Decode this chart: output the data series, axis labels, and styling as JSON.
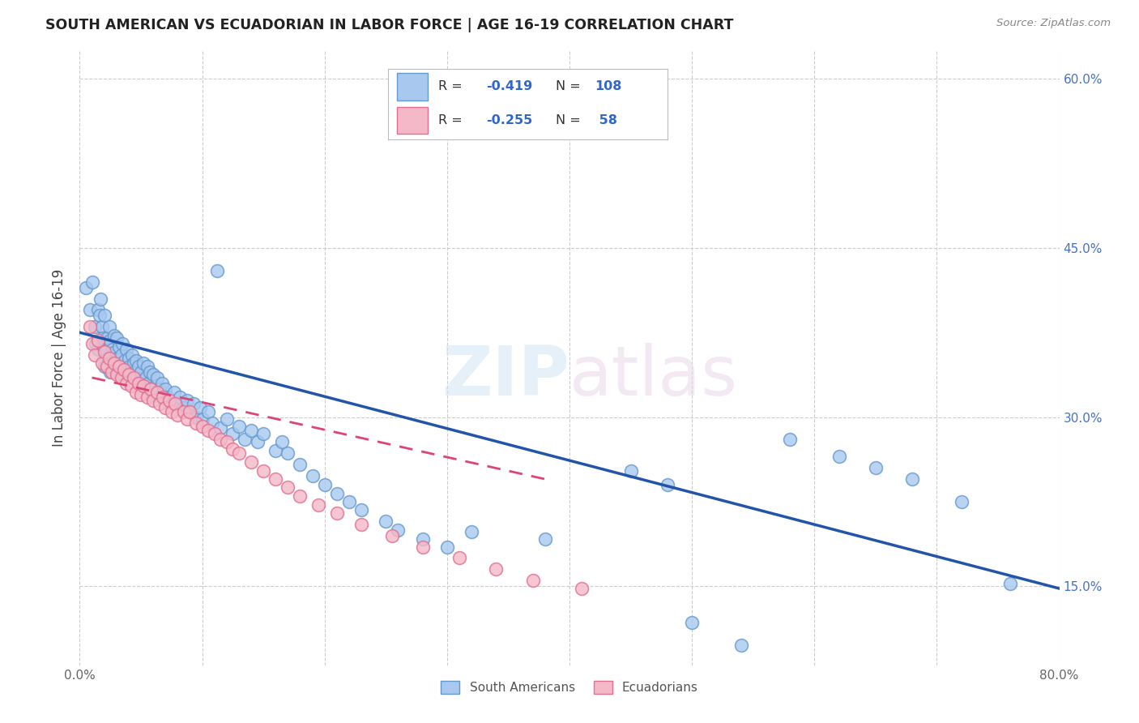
{
  "title": "SOUTH AMERICAN VS ECUADORIAN IN LABOR FORCE | AGE 16-19 CORRELATION CHART",
  "source": "Source: ZipAtlas.com",
  "ylabel": "In Labor Force | Age 16-19",
  "xlim": [
    0.0,
    0.8
  ],
  "ylim": [
    0.08,
    0.625
  ],
  "xticks": [
    0.0,
    0.1,
    0.2,
    0.3,
    0.4,
    0.5,
    0.6,
    0.7,
    0.8
  ],
  "xticklabels": [
    "0.0%",
    "",
    "",
    "",
    "",
    "",
    "",
    "",
    "80.0%"
  ],
  "yticks_right": [
    0.15,
    0.3,
    0.45,
    0.6
  ],
  "ytick_labels_right": [
    "15.0%",
    "30.0%",
    "45.0%",
    "60.0%"
  ],
  "blue_color": "#A8C8F0",
  "pink_color": "#F5B8C8",
  "blue_edge_color": "#6699CC",
  "pink_edge_color": "#E07090",
  "blue_line_color": "#2255AA",
  "pink_line_color": "#DD4477",
  "watermark": "ZIPatlas",
  "blue_R": -0.419,
  "blue_N": 108,
  "pink_R": -0.255,
  "pink_N": 58,
  "blue_line_x0": 0.0,
  "blue_line_y0": 0.375,
  "blue_line_x1": 0.8,
  "blue_line_y1": 0.148,
  "pink_line_x0": 0.01,
  "pink_line_y0": 0.335,
  "pink_line_x1": 0.38,
  "pink_line_y1": 0.245,
  "south_americans_x": [
    0.005,
    0.008,
    0.01,
    0.012,
    0.013,
    0.015,
    0.015,
    0.016,
    0.017,
    0.018,
    0.018,
    0.019,
    0.02,
    0.02,
    0.021,
    0.022,
    0.023,
    0.024,
    0.025,
    0.025,
    0.026,
    0.027,
    0.028,
    0.028,
    0.029,
    0.03,
    0.03,
    0.031,
    0.032,
    0.033,
    0.034,
    0.035,
    0.036,
    0.037,
    0.038,
    0.039,
    0.04,
    0.041,
    0.042,
    0.043,
    0.044,
    0.045,
    0.046,
    0.047,
    0.048,
    0.05,
    0.051,
    0.052,
    0.054,
    0.055,
    0.056,
    0.057,
    0.058,
    0.06,
    0.062,
    0.063,
    0.065,
    0.067,
    0.068,
    0.07,
    0.072,
    0.075,
    0.077,
    0.08,
    0.082,
    0.085,
    0.088,
    0.09,
    0.093,
    0.095,
    0.098,
    0.1,
    0.105,
    0.108,
    0.112,
    0.115,
    0.12,
    0.125,
    0.13,
    0.135,
    0.14,
    0.145,
    0.15,
    0.16,
    0.165,
    0.17,
    0.18,
    0.19,
    0.2,
    0.21,
    0.22,
    0.23,
    0.25,
    0.26,
    0.28,
    0.3,
    0.32,
    0.38,
    0.45,
    0.48,
    0.5,
    0.54,
    0.58,
    0.62,
    0.65,
    0.68,
    0.72,
    0.76
  ],
  "south_americans_y": [
    0.415,
    0.395,
    0.42,
    0.38,
    0.365,
    0.36,
    0.395,
    0.39,
    0.405,
    0.365,
    0.38,
    0.37,
    0.39,
    0.345,
    0.358,
    0.37,
    0.352,
    0.38,
    0.368,
    0.34,
    0.355,
    0.36,
    0.372,
    0.345,
    0.358,
    0.37,
    0.34,
    0.352,
    0.362,
    0.348,
    0.355,
    0.365,
    0.342,
    0.35,
    0.36,
    0.34,
    0.352,
    0.345,
    0.338,
    0.355,
    0.348,
    0.34,
    0.35,
    0.335,
    0.345,
    0.34,
    0.332,
    0.348,
    0.335,
    0.345,
    0.33,
    0.34,
    0.32,
    0.338,
    0.328,
    0.335,
    0.325,
    0.33,
    0.318,
    0.325,
    0.318,
    0.312,
    0.322,
    0.31,
    0.318,
    0.308,
    0.315,
    0.305,
    0.312,
    0.3,
    0.308,
    0.298,
    0.305,
    0.295,
    0.43,
    0.29,
    0.298,
    0.285,
    0.292,
    0.28,
    0.288,
    0.278,
    0.285,
    0.27,
    0.278,
    0.268,
    0.258,
    0.248,
    0.24,
    0.232,
    0.225,
    0.218,
    0.208,
    0.2,
    0.192,
    0.185,
    0.198,
    0.192,
    0.252,
    0.24,
    0.118,
    0.098,
    0.28,
    0.265,
    0.255,
    0.245,
    0.225,
    0.152
  ],
  "ecuadorians_x": [
    0.008,
    0.01,
    0.012,
    0.015,
    0.018,
    0.02,
    0.022,
    0.024,
    0.026,
    0.028,
    0.03,
    0.032,
    0.034,
    0.036,
    0.038,
    0.04,
    0.042,
    0.044,
    0.046,
    0.048,
    0.05,
    0.052,
    0.055,
    0.058,
    0.06,
    0.063,
    0.065,
    0.068,
    0.07,
    0.073,
    0.075,
    0.078,
    0.08,
    0.085,
    0.088,
    0.09,
    0.095,
    0.1,
    0.105,
    0.11,
    0.115,
    0.12,
    0.125,
    0.13,
    0.14,
    0.15,
    0.16,
    0.17,
    0.18,
    0.195,
    0.21,
    0.23,
    0.255,
    0.28,
    0.31,
    0.34,
    0.37,
    0.41
  ],
  "ecuadorians_y": [
    0.38,
    0.365,
    0.355,
    0.368,
    0.348,
    0.358,
    0.345,
    0.352,
    0.34,
    0.348,
    0.338,
    0.345,
    0.335,
    0.342,
    0.33,
    0.338,
    0.328,
    0.335,
    0.322,
    0.33,
    0.32,
    0.328,
    0.318,
    0.325,
    0.315,
    0.322,
    0.312,
    0.318,
    0.308,
    0.315,
    0.305,
    0.312,
    0.302,
    0.305,
    0.298,
    0.305,
    0.295,
    0.292,
    0.288,
    0.285,
    0.28,
    0.278,
    0.272,
    0.268,
    0.26,
    0.252,
    0.245,
    0.238,
    0.23,
    0.222,
    0.215,
    0.205,
    0.195,
    0.185,
    0.175,
    0.165,
    0.155,
    0.148
  ]
}
